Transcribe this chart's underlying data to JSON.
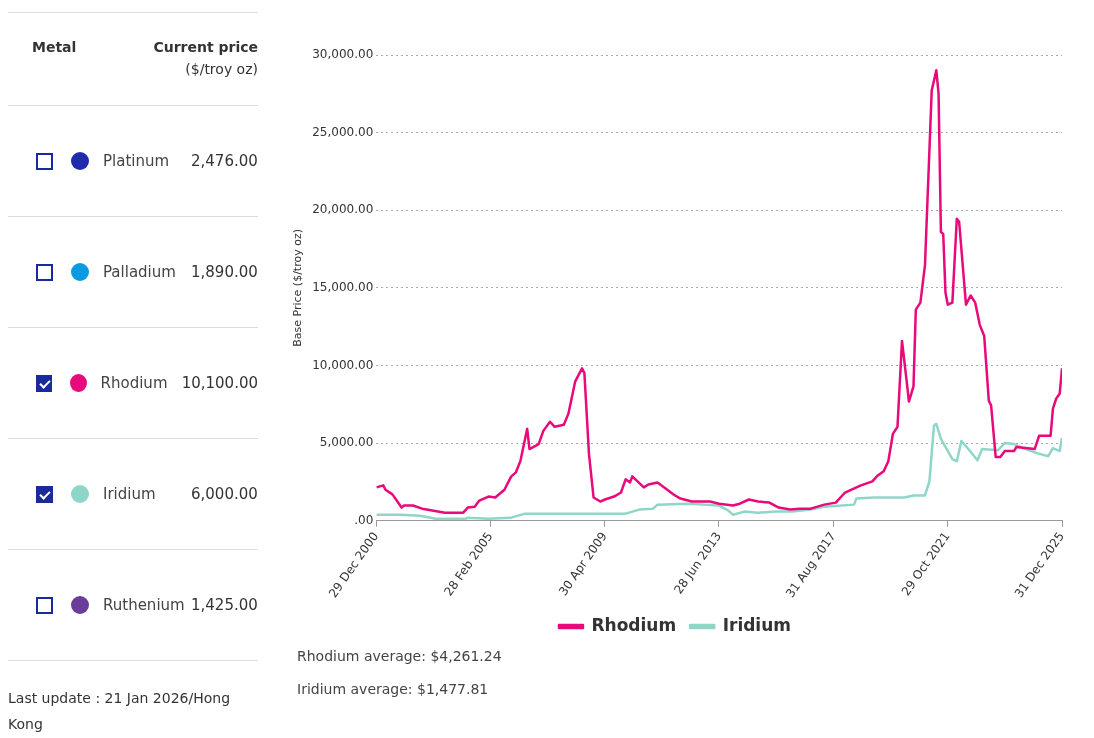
{
  "chart_data": [
    {
      "type": "other",
      "xlabel": "Metal",
      "ylabel": "Current price ($/troy oz)",
      "categories": [
        "Platinum",
        "Palladium",
        "Rhodium",
        "Iridium",
        "Ruthenium"
      ],
      "value_labels": [
        "2,476.00",
        "1,890.00",
        "10,100.00",
        "6,000.00",
        "1,425.00"
      ],
      "colors": [
        "#1f2bab",
        "#0a9ae0",
        "#e8097a",
        "#8fd6c8",
        "#6a3d9a"
      ],
      "annotations": [
        "Last update : 21 Jan 2026/Hong Kong"
      ]
    },
    {
      "type": "line",
      "ylabel": "Base Price ($/troy oz)",
      "xlim": [
        "2000-12-29",
        "2025-12-31"
      ],
      "xticks": [
        {
          "value": "2000-12-29",
          "label": "29 Dec 2000"
        },
        {
          "value": "2005-02-28",
          "label": "28 Feb 2005"
        },
        {
          "value": "2009-04-30",
          "label": "30 Apr 2009"
        },
        {
          "value": "2013-06-28",
          "label": "28 Jun 2013"
        },
        {
          "value": "2017-08-31",
          "label": "31 Aug 2017"
        },
        {
          "value": "2021-10-29",
          "label": "29 Oct 2021"
        },
        {
          "value": "2025-12-31",
          "label": "31 Dec 2025"
        }
      ],
      "ylim": [
        0,
        30000
      ],
      "yticks": [
        {
          "value": 0,
          "label": ".00"
        },
        {
          "value": 5000,
          "label": "5,000.00"
        },
        {
          "value": 10000,
          "label": "10,000.00"
        },
        {
          "value": 15000,
          "label": "15,000.00"
        },
        {
          "value": 20000,
          "label": "20,000.00"
        },
        {
          "value": 25000,
          "label": "25,000.00"
        },
        {
          "value": 30000,
          "label": "30,000.00"
        }
      ],
      "grid": "y",
      "legend": "bottom",
      "marker": "none",
      "line_style": "solid",
      "series": [
        {
          "name": "Rhodium",
          "color": "#e8097a",
          "x": [
            "2001-01",
            "2001-04",
            "2001-05",
            "2001-08",
            "2001-12",
            "2002-01",
            "2002-05",
            "2002-09",
            "2003-02",
            "2003-07",
            "2004-03",
            "2004-05",
            "2004-08",
            "2004-10",
            "2005-02",
            "2005-05",
            "2005-09",
            "2005-12",
            "2006-02",
            "2006-04",
            "2006-07",
            "2006-08",
            "2006-12",
            "2007-02",
            "2007-05",
            "2007-07",
            "2007-11",
            "2008-01",
            "2008-04",
            "2008-07",
            "2008-08",
            "2008-10",
            "2008-12",
            "2009-03",
            "2009-05",
            "2009-09",
            "2009-12",
            "2010-02",
            "2010-04",
            "2010-05",
            "2010-10",
            "2010-12",
            "2011-04",
            "2011-07",
            "2011-11",
            "2012-02",
            "2012-07",
            "2013-03",
            "2013-07",
            "2014-01",
            "2014-04",
            "2014-08",
            "2014-12",
            "2015-05",
            "2015-09",
            "2016-02",
            "2016-06",
            "2016-11",
            "2017-05",
            "2017-10",
            "2018-02",
            "2018-09",
            "2019-02",
            "2019-04",
            "2019-07",
            "2019-09",
            "2019-11",
            "2020-01",
            "2020-03",
            "2020-05",
            "2020-06",
            "2020-08",
            "2020-09",
            "2020-11",
            "2021-01",
            "2021-04",
            "2021-06",
            "2021-07",
            "2021-08",
            "2021-09",
            "2021-10",
            "2021-11",
            "2022-01",
            "2022-03",
            "2022-04",
            "2022-07",
            "2022-09",
            "2022-11",
            "2023-01",
            "2023-03",
            "2023-05",
            "2023-06",
            "2023-08",
            "2023-10",
            "2023-12",
            "2024-04",
            "2024-05",
            "2025-01",
            "2025-03",
            "2025-08",
            "2025-09",
            "2025-10-15",
            "2025-12-01",
            "2025-12-31"
          ],
          "values": [
            2150,
            2280,
            2000,
            1700,
            850,
            980,
            980,
            780,
            650,
            520,
            520,
            850,
            900,
            1300,
            1560,
            1500,
            2000,
            2860,
            3120,
            3840,
            5920,
            4620,
            4940,
            5790,
            6380,
            6050,
            6180,
            6900,
            8980,
            9820,
            9500,
            4290,
            1500,
            1240,
            1370,
            1560,
            1820,
            2670,
            2470,
            2860,
            2150,
            2340,
            2470,
            2150,
            1690,
            1430,
            1240,
            1240,
            1100,
            980,
            1100,
            1370,
            1240,
            1170,
            850,
            720,
            780,
            780,
            1040,
            1170,
            1820,
            2280,
            2540,
            2860,
            3190,
            3840,
            5600,
            6050,
            11580,
            9040,
            7680,
            8650,
            13600,
            14050,
            16460,
            27720,
            29020,
            27520,
            18600,
            18480,
            14700,
            13920,
            14050,
            19450,
            19260,
            13920,
            14510,
            14050,
            12620,
            11900,
            7740,
            7420,
            4100,
            4100,
            4490,
            4490,
            4750,
            4620,
            5470,
            5470,
            7220,
            7870,
            8200,
            9820
          ]
        },
        {
          "name": "Iridium",
          "color": "#8fd6c8",
          "x": [
            "2001-01",
            "2001-12",
            "2002-08",
            "2003-03",
            "2004-04",
            "2004-05",
            "2005-02",
            "2005-12",
            "2006-06",
            "2007-04",
            "2008-10",
            "2010-02",
            "2010-08",
            "2011-02",
            "2011-04",
            "2012-05",
            "2012-12",
            "2013-07",
            "2013-11",
            "2014-01",
            "2014-06",
            "2014-12",
            "2015-08",
            "2016-03",
            "2016-11",
            "2017-05",
            "2018-06",
            "2018-07",
            "2019-03",
            "2020-04",
            "2020-08",
            "2021-01",
            "2021-03",
            "2021-05",
            "2021-06",
            "2021-08",
            "2022-01",
            "2022-03",
            "2022-05",
            "2022-08",
            "2022-12",
            "2023-02",
            "2023-09",
            "2023-12",
            "2024-04",
            "2024-08",
            "2025-02",
            "2025-07",
            "2025-09",
            "2025-12-01",
            "2025-12-31"
          ],
          "values": [
            390,
            390,
            330,
            130,
            130,
            200,
            130,
            200,
            460,
            460,
            460,
            460,
            720,
            780,
            1040,
            1100,
            1040,
            980,
            650,
            390,
            590,
            520,
            590,
            590,
            720,
            910,
            1040,
            1430,
            1500,
            1500,
            1630,
            1630,
            2540,
            6120,
            6250,
            5270,
            3970,
            3840,
            5140,
            4620,
            3900,
            4620,
            4550,
            5010,
            4940,
            4680,
            4360,
            4160,
            4680,
            4490,
            5340
          ]
        }
      ],
      "annotations": [
        "Rhodium average: $4,261.24",
        "Iridium average: $1,477.81"
      ]
    }
  ]
}
